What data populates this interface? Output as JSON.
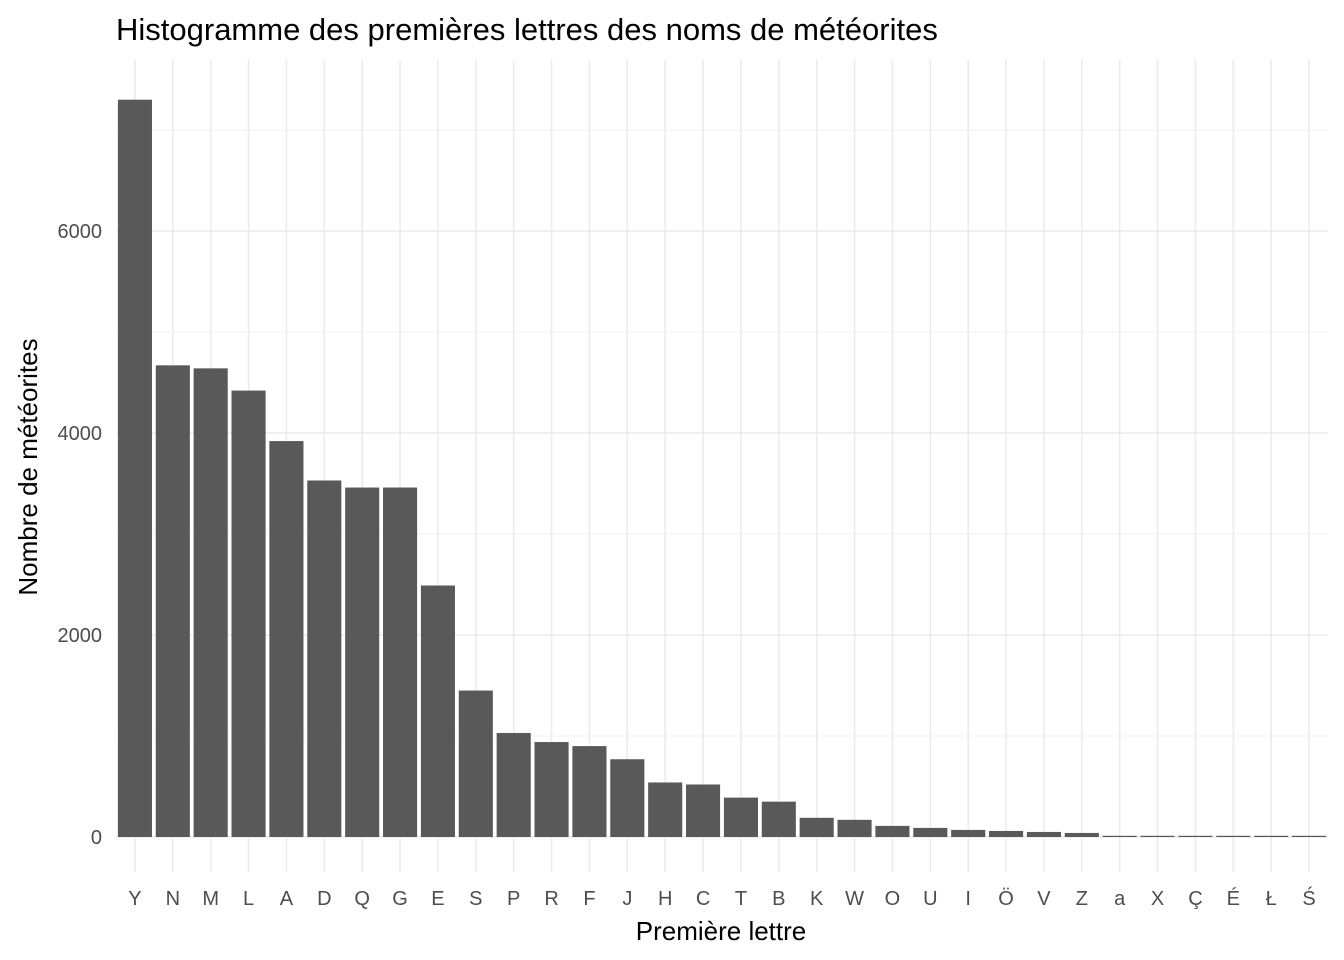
{
  "chart_data": {
    "type": "bar",
    "title": "Histogramme des premières lettres des noms de météorites",
    "xlabel": "Première lettre",
    "ylabel": "Nombre de météorites",
    "categories": [
      "Y",
      "N",
      "M",
      "L",
      "A",
      "D",
      "Q",
      "G",
      "E",
      "S",
      "P",
      "R",
      "F",
      "J",
      "H",
      "C",
      "T",
      "B",
      "K",
      "W",
      "O",
      "U",
      "I",
      "Ö",
      "V",
      "Z",
      "a",
      "X",
      "Ç",
      "É",
      "Ł",
      "Ś"
    ],
    "values": [
      7300,
      4670,
      4640,
      4420,
      3920,
      3530,
      3460,
      3460,
      2490,
      1450,
      1030,
      940,
      900,
      770,
      540,
      520,
      390,
      350,
      190,
      170,
      110,
      90,
      70,
      60,
      50,
      40,
      2,
      2,
      1,
      1,
      1,
      1
    ],
    "ylim": [
      -300,
      7650
    ],
    "yticks": [
      0,
      2000,
      4000,
      6000
    ],
    "ytick_labels": [
      "0",
      "2000",
      "4000",
      "6000"
    ],
    "grid": true,
    "bar_color": "#595959",
    "grid_color": "#ebebeb"
  }
}
